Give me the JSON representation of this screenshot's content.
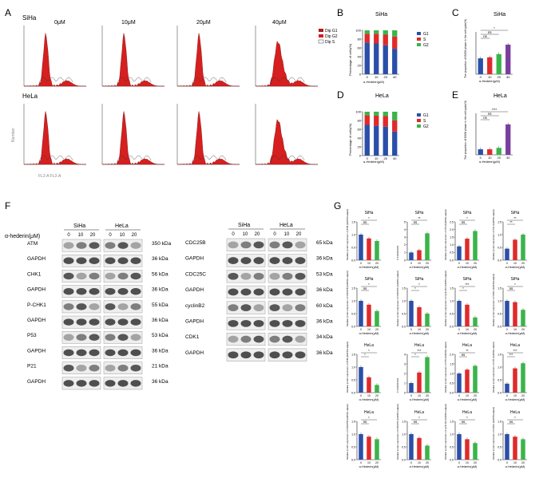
{
  "colors": {
    "g1": "#2b4fa8",
    "s": "#e02a2a",
    "g2": "#3bb44a",
    "extra": "#7a3e9d",
    "hist": "#d61f1f"
  },
  "panelA": {
    "letter": "A",
    "doses": [
      "0μM",
      "10μM",
      "20μM",
      "40μM"
    ],
    "rows": [
      "SiHa",
      "HeLa"
    ],
    "legend": [
      "Dip G1",
      "Dip G2",
      "Dip S"
    ],
    "ylabel": "Number",
    "xlabel": "FL2-A FL2-A"
  },
  "panelB": {
    "letter": "B",
    "title": "SiHa",
    "ylabel": "Percentage of cells(%)",
    "xlabel": "α-Hederin(μM)",
    "legend": [
      "G1",
      "S",
      "G2"
    ],
    "chart_data": {
      "type": "bar",
      "stacked": true,
      "categories": [
        "0",
        "10",
        "20",
        "40"
      ],
      "series": [
        {
          "name": "G1",
          "values": [
            72,
            70,
            66,
            58
          ]
        },
        {
          "name": "S",
          "values": [
            20,
            22,
            24,
            28
          ]
        },
        {
          "name": "G2",
          "values": [
            8,
            8,
            10,
            14
          ]
        }
      ],
      "ylim": [
        0,
        100
      ],
      "yticks": [
        "0",
        "20",
        "40",
        "60",
        "80",
        "100"
      ]
    }
  },
  "panelC": {
    "letter": "C",
    "title": "SiHa",
    "ylabel": "The proportion of G2/M phase in the cell cycle(%)",
    "xlabel": "α-Hederin(μM)",
    "sig": [
      "*",
      "ns",
      "ns"
    ],
    "chart_data": {
      "type": "bar",
      "categories": [
        "0",
        "10",
        "20",
        "40"
      ],
      "values": [
        7.5,
        8,
        9.5,
        14
      ],
      "ylim": [
        0,
        20
      ]
    }
  },
  "panelD": {
    "letter": "D",
    "title": "HeLa",
    "ylabel": "Percentage of cells(%)",
    "xlabel": "α-Hederin(μM)",
    "legend": [
      "G1",
      "S",
      "G2"
    ],
    "chart_data": {
      "type": "bar",
      "stacked": true,
      "categories": [
        "0",
        "10",
        "20",
        "40"
      ],
      "series": [
        {
          "name": "G1",
          "values": [
            70,
            68,
            66,
            55
          ]
        },
        {
          "name": "S",
          "values": [
            22,
            23,
            24,
            25
          ]
        },
        {
          "name": "G2",
          "values": [
            8,
            9,
            10,
            20
          ]
        }
      ],
      "ylim": [
        0,
        100
      ],
      "yticks": [
        "0",
        "20",
        "40",
        "60",
        "80",
        "100"
      ]
    }
  },
  "panelE": {
    "letter": "E",
    "title": "HeLa",
    "ylabel": "The proportion of G2/M phase in the cell cycle(%)",
    "xlabel": "α-Hederin(μM)",
    "sig": [
      "****",
      "ns",
      "ns"
    ],
    "chart_data": {
      "type": "bar",
      "categories": [
        "0",
        "10",
        "20",
        "40"
      ],
      "values": [
        4,
        4,
        5,
        22
      ],
      "ylim": [
        0,
        30
      ]
    }
  },
  "panelF": {
    "letter": "F",
    "hederin_label": "α-hederin(μM)",
    "doses": [
      "0",
      "10",
      "20"
    ],
    "cells": [
      "SiHa",
      "HeLa"
    ],
    "left_rows": [
      {
        "protein": "ATM",
        "kda": "350 kDa"
      },
      {
        "protein": "GAPDH",
        "kda": "36 kDa"
      },
      {
        "protein": "CHK1",
        "kda": "56 kDa"
      },
      {
        "protein": "GAPDH",
        "kda": "36 kDa"
      },
      {
        "protein": "P-CHK1",
        "kda": "55 kDa"
      },
      {
        "protein": "GAPDH",
        "kda": "36 kDa"
      },
      {
        "protein": "P53",
        "kda": "53 kDa"
      },
      {
        "protein": "GAPDH",
        "kda": "36 kDa"
      },
      {
        "protein": "P21",
        "kda": "21 kDa"
      },
      {
        "protein": "GAPDH",
        "kda": "36 kDa"
      }
    ],
    "right_rows": [
      {
        "protein": "CDC25B",
        "kda": "65 kDa"
      },
      {
        "protein": "GAPDH",
        "kda": "36 kDa"
      },
      {
        "protein": "CDC25C",
        "kda": "53 kDa"
      },
      {
        "protein": "GAPDH",
        "kda": "36 kDa"
      },
      {
        "protein": "cyclinB2",
        "kda": "60 kDa"
      },
      {
        "protein": "GAPDH",
        "kda": "36 kDa"
      },
      {
        "protein": "CDK1",
        "kda": "34 kDa"
      },
      {
        "protein": "GAPDH",
        "kda": "36 kDa"
      }
    ]
  },
  "panelG": {
    "letter": "G",
    "xlabel": "α-Hederin(μM)",
    "charts": [
      {
        "title": "SiHa",
        "ylabel": "Relative protein expression of ATM (GAPDH-adjust)",
        "sig": [
          "*",
          "ns"
        ],
        "chart_data": {
          "type": "bar",
          "categories": [
            "0",
            "10",
            "20"
          ],
          "values": [
            1.0,
            0.85,
            0.75
          ],
          "ylim": [
            0,
            1.5
          ],
          "yticks": [
            "0.0",
            "0.5",
            "1.0",
            "1.5"
          ]
        }
      },
      {
        "title": "SiHa",
        "ylabel": "P-CHK1/CHK1",
        "sig": [
          "**",
          "ns"
        ],
        "chart_data": {
          "type": "bar",
          "categories": [
            "0",
            "10",
            "20"
          ],
          "values": [
            1.0,
            1.3,
            3.5
          ],
          "ylim": [
            0,
            5
          ],
          "yticks": [
            "0",
            "1",
            "2",
            "3",
            "4",
            "5"
          ]
        }
      },
      {
        "title": "SiHa",
        "ylabel": "Relative protein expression of P53 (GAPDH-adjust)",
        "sig": [
          "*",
          "ns"
        ],
        "chart_data": {
          "type": "bar",
          "categories": [
            "0",
            "10",
            "20"
          ],
          "values": [
            0.9,
            1.4,
            1.9
          ],
          "ylim": [
            0,
            2.5
          ],
          "yticks": [
            "0.0",
            "0.5",
            "1.0",
            "1.5",
            "2.0",
            "2.5"
          ]
        }
      },
      {
        "title": "SiHa",
        "ylabel": "Relative protein expression of P21 (GAPDH-adjust)",
        "sig": [
          "**",
          "**"
        ],
        "chart_data": {
          "type": "bar",
          "categories": [
            "0",
            "10",
            "20"
          ],
          "values": [
            0.45,
            0.8,
            1.0
          ],
          "ylim": [
            0,
            1.5
          ],
          "yticks": [
            "0.0",
            "0.5",
            "1.0",
            "1.5"
          ]
        }
      },
      {
        "title": "SiHa",
        "ylabel": "Relative protein expression of CDC25B (GAPDH-adjust)",
        "sig": [
          "*",
          "ns"
        ],
        "chart_data": {
          "type": "bar",
          "categories": [
            "0",
            "10",
            "20"
          ],
          "values": [
            1.0,
            0.85,
            0.6
          ],
          "ylim": [
            0,
            1.5
          ],
          "yticks": [
            "0.0",
            "0.5",
            "1.0",
            "1.5"
          ]
        }
      },
      {
        "title": "SiHa",
        "ylabel": "Relative protein expression of CDC25C (GAPDH-adjust)",
        "sig": [
          "*",
          "*"
        ],
        "chart_data": {
          "type": "bar",
          "categories": [
            "0",
            "10",
            "20"
          ],
          "values": [
            1.0,
            0.75,
            0.5
          ],
          "ylim": [
            0,
            1.5
          ],
          "yticks": [
            "0.0",
            "0.5",
            "1.0",
            "1.5"
          ]
        }
      },
      {
        "title": "SiHa",
        "ylabel": "Relative protein expression of cyclin B2 (GAPDH-adjust)",
        "sig": [
          "***",
          "*"
        ],
        "chart_data": {
          "type": "bar",
          "categories": [
            "0",
            "10",
            "20"
          ],
          "values": [
            1.0,
            0.85,
            0.35
          ],
          "ylim": [
            0,
            1.5
          ],
          "yticks": [
            "0.0",
            "0.5",
            "1.0",
            "1.5"
          ]
        }
      },
      {
        "title": "SiHa",
        "ylabel": "Relative protein expression of CDK1 (GAPDH-adjust)",
        "sig": [
          "*",
          "ns"
        ],
        "chart_data": {
          "type": "bar",
          "categories": [
            "0",
            "10",
            "20"
          ],
          "values": [
            1.0,
            0.95,
            0.65
          ],
          "ylim": [
            0,
            1.5
          ],
          "yticks": [
            "0.0",
            "0.5",
            "1.0",
            "1.5"
          ]
        }
      },
      {
        "title": "HeLa",
        "ylabel": "Relative protein expression of ATM (GAPDH-adjust)",
        "sig": [
          "*",
          "*"
        ],
        "chart_data": {
          "type": "bar",
          "categories": [
            "0",
            "10",
            "20"
          ],
          "values": [
            1.0,
            0.6,
            0.3
          ],
          "ylim": [
            0,
            1.5
          ],
          "yticks": [
            "0.0",
            "0.5",
            "1.0",
            "1.5"
          ]
        }
      },
      {
        "title": "HeLa",
        "ylabel": "P-CHK1/CHK1",
        "sig": [
          "***",
          "*"
        ],
        "chart_data": {
          "type": "bar",
          "categories": [
            "0",
            "10",
            "20"
          ],
          "values": [
            1.0,
            2.1,
            3.7
          ],
          "ylim": [
            0,
            4
          ],
          "yticks": [
            "0",
            "1",
            "2",
            "3",
            "4"
          ]
        }
      },
      {
        "title": "HeLa",
        "ylabel": "Relative protein expression of P53 (GAPDH-adjust)",
        "sig": [
          "**",
          "ns"
        ],
        "chart_data": {
          "type": "bar",
          "categories": [
            "0",
            "10",
            "20"
          ],
          "values": [
            1.0,
            1.2,
            1.4
          ],
          "ylim": [
            0,
            2.0
          ],
          "yticks": [
            "0.0",
            "0.5",
            "1.0",
            "1.5",
            "2.0"
          ]
        }
      },
      {
        "title": "HeLa",
        "ylabel": "Relative protein expression of P21 (GAPDH-adjust)",
        "sig": [
          "***",
          "***"
        ],
        "chart_data": {
          "type": "bar",
          "categories": [
            "0",
            "10",
            "20"
          ],
          "values": [
            0.35,
            0.95,
            1.15
          ],
          "ylim": [
            0,
            1.5
          ],
          "yticks": [
            "0.0",
            "0.5",
            "1.0",
            "1.5"
          ]
        }
      },
      {
        "title": "HeLa",
        "ylabel": "Relative protein expression of CDC25B (GAPDH-adjust)",
        "sig": [
          "*",
          "ns"
        ],
        "chart_data": {
          "type": "bar",
          "categories": [
            "0",
            "10",
            "20"
          ],
          "values": [
            1.0,
            0.9,
            0.8
          ],
          "ylim": [
            0,
            1.5
          ],
          "yticks": [
            "0.0",
            "0.5",
            "1.0",
            "1.5"
          ]
        }
      },
      {
        "title": "HeLa",
        "ylabel": "Relative protein expression of CDC25C (GAPDH-adjust)",
        "sig": [
          "*",
          "ns"
        ],
        "chart_data": {
          "type": "bar",
          "categories": [
            "0",
            "10",
            "20"
          ],
          "values": [
            1.0,
            0.85,
            0.55
          ],
          "ylim": [
            0,
            1.5
          ],
          "yticks": [
            "0.0",
            "0.5",
            "1.0",
            "1.5"
          ]
        }
      },
      {
        "title": "HeLa",
        "ylabel": "Relative protein expression of cyclin B2 (GAPDH-adjust)",
        "sig": [
          "*",
          "ns"
        ],
        "chart_data": {
          "type": "bar",
          "categories": [
            "0",
            "10",
            "20"
          ],
          "values": [
            1.0,
            0.8,
            0.65
          ],
          "ylim": [
            0,
            1.5
          ],
          "yticks": [
            "0.0",
            "0.5",
            "1.0",
            "1.5"
          ]
        }
      },
      {
        "title": "HeLa",
        "ylabel": "Relative protein expression of CDK1 (GAPDH-adjust)",
        "sig": [
          "*",
          "ns"
        ],
        "chart_data": {
          "type": "bar",
          "categories": [
            "0",
            "10",
            "20"
          ],
          "values": [
            1.0,
            0.9,
            0.8
          ],
          "ylim": [
            0,
            1.5
          ],
          "yticks": [
            "0.0",
            "0.5",
            "1.0",
            "1.5"
          ]
        }
      }
    ]
  }
}
